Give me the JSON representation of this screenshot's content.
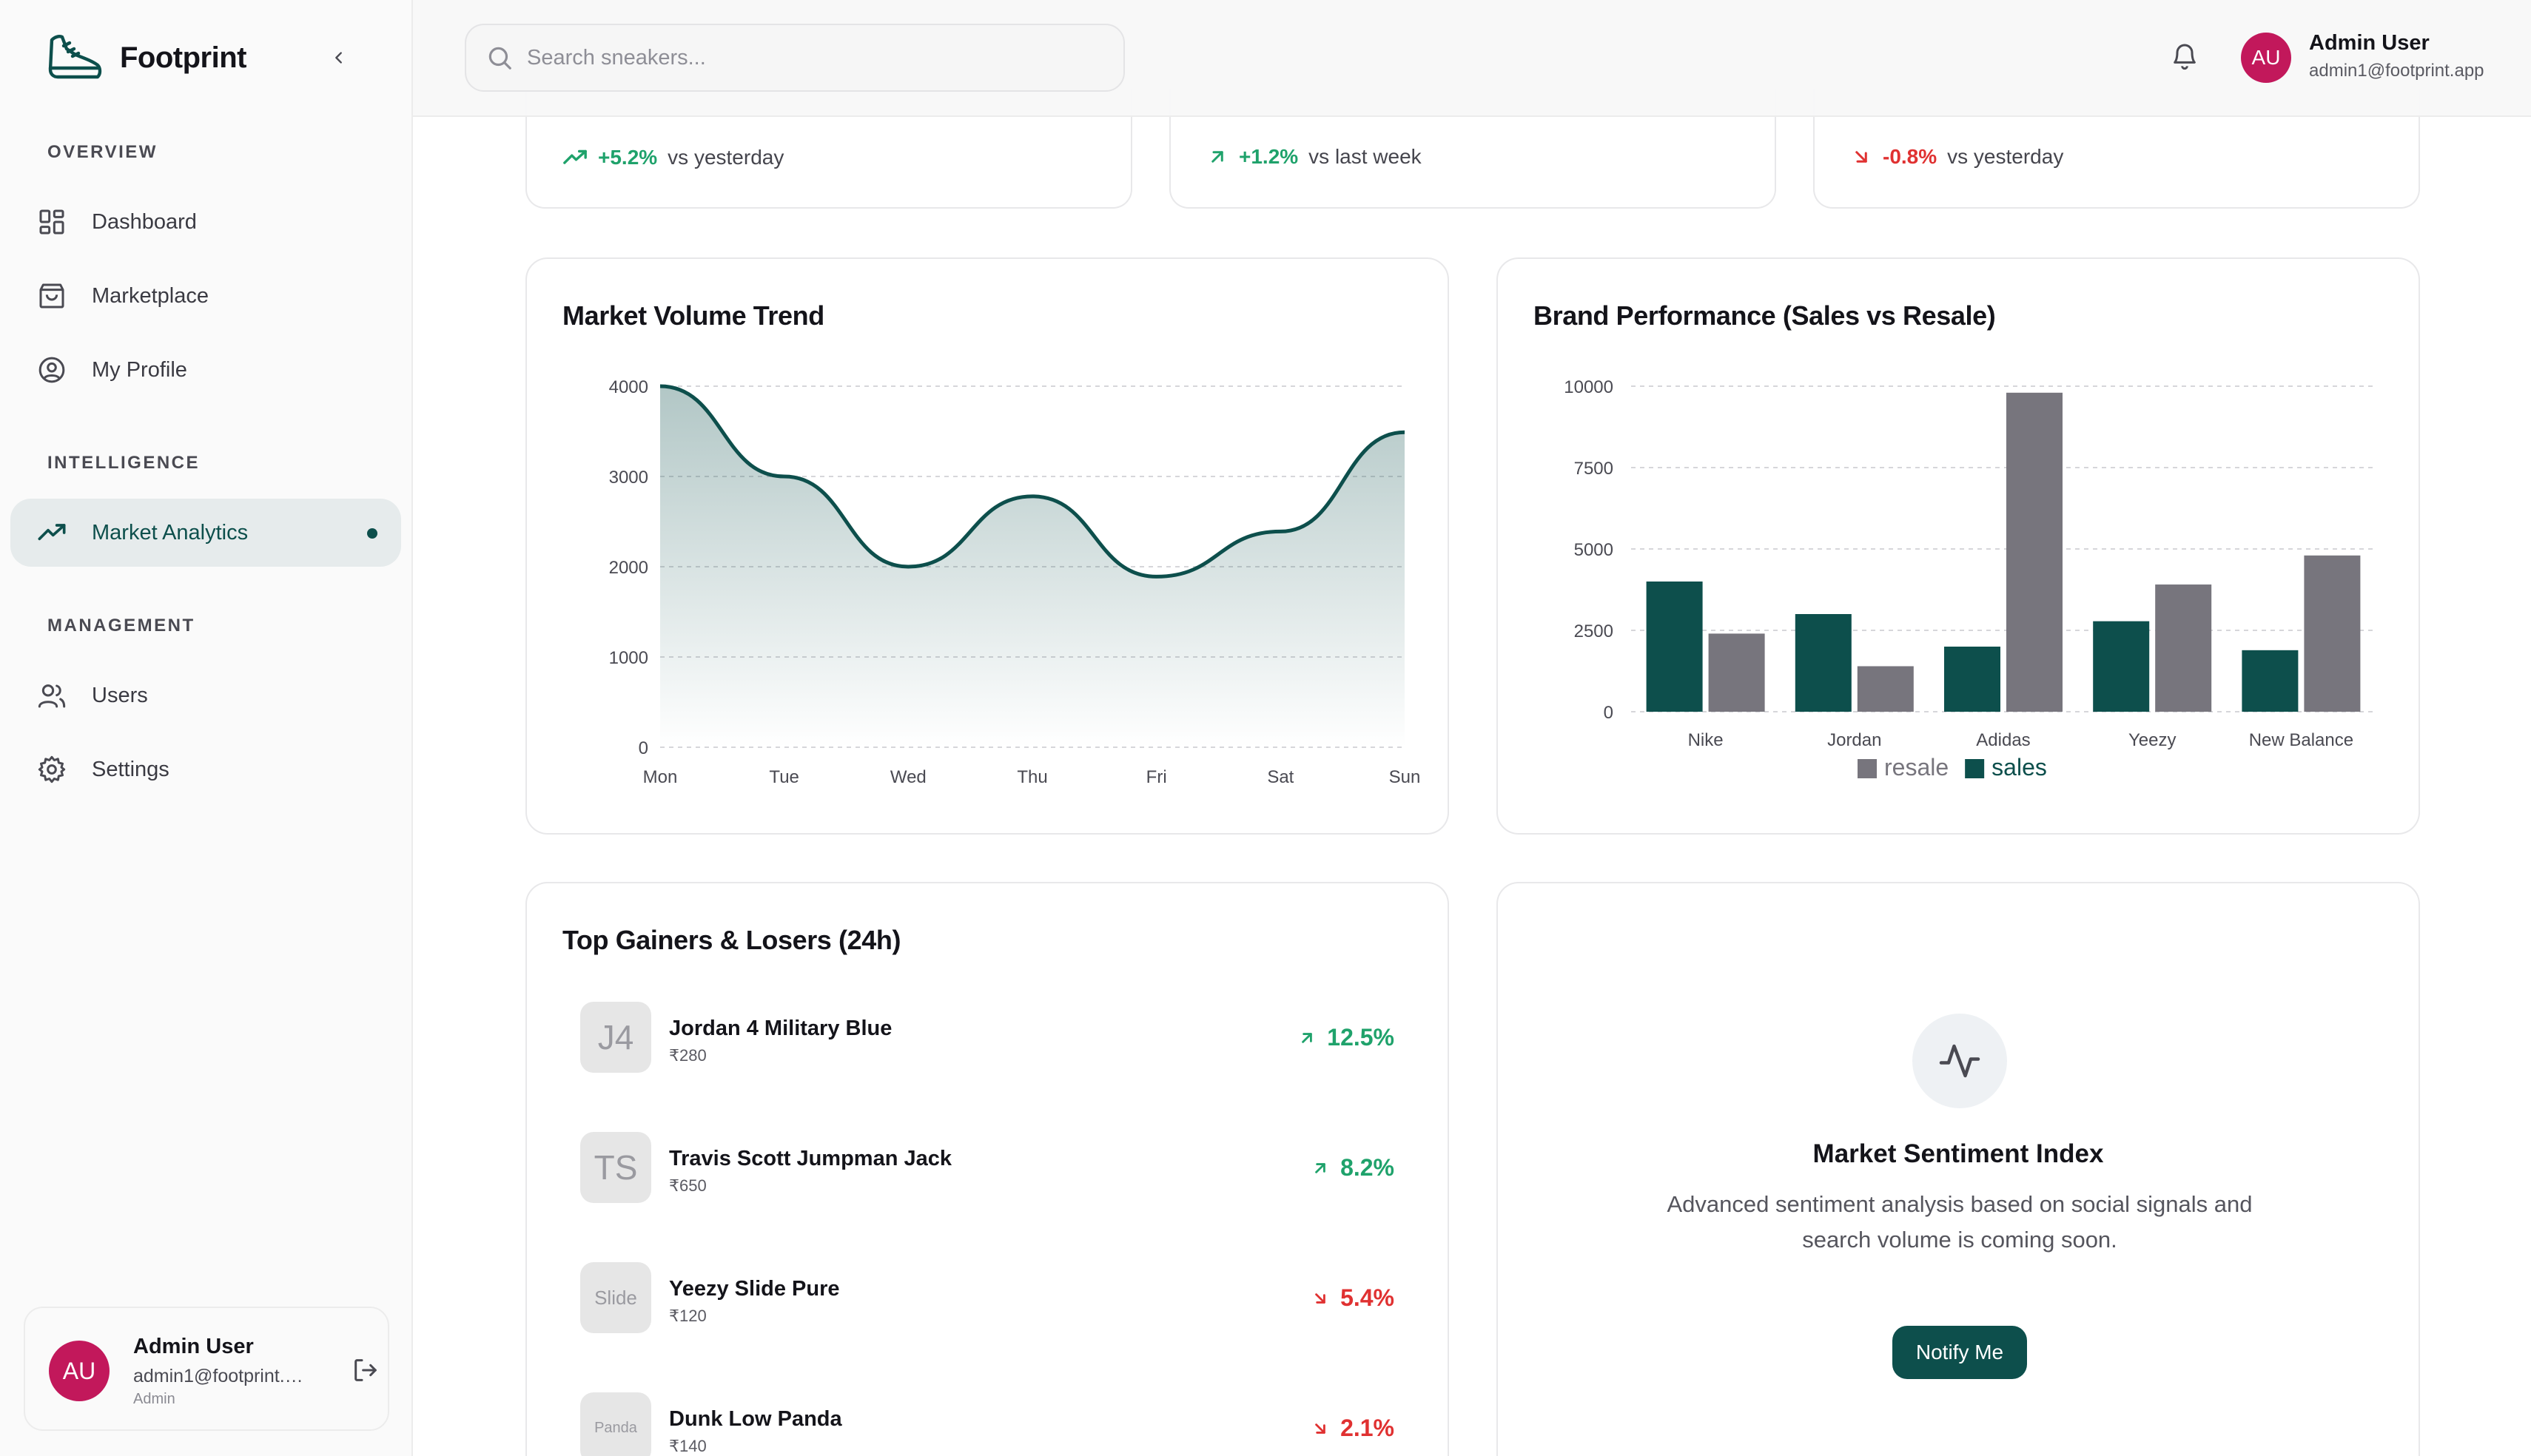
{
  "app": {
    "name": "Footprint"
  },
  "sidebar": {
    "sections": [
      {
        "label": "OVERVIEW"
      },
      {
        "label": "INTELLIGENCE"
      },
      {
        "label": "MANAGEMENT"
      }
    ],
    "items": [
      {
        "label": "Dashboard",
        "icon": "dashboard-icon"
      },
      {
        "label": "Marketplace",
        "icon": "shopping-bag-icon"
      },
      {
        "label": "My Profile",
        "icon": "user-circle-icon"
      },
      {
        "label": "Market Analytics",
        "icon": "trending-up-icon",
        "active": true
      },
      {
        "label": "Users",
        "icon": "users-icon"
      },
      {
        "label": "Settings",
        "icon": "gear-icon"
      }
    ],
    "user": {
      "initials": "AU",
      "name": "Admin User",
      "email": "admin1@footprint.…",
      "role": "Admin"
    }
  },
  "header": {
    "search_placeholder": "Search sneakers...",
    "user": {
      "initials": "AU",
      "name": "Admin User",
      "email": "admin1@footprint.app"
    }
  },
  "stats": [
    {
      "change": "+5.2%",
      "direction": "up",
      "context": "vs yesterday"
    },
    {
      "change": "+1.2%",
      "direction": "up",
      "context": "vs last week"
    },
    {
      "change": "-0.8%",
      "direction": "down",
      "context": "vs yesterday"
    }
  ],
  "volume_card": {
    "title": "Market Volume Trend"
  },
  "brand_card": {
    "title": "Brand Performance (Sales vs Resale)"
  },
  "movers_card": {
    "title": "Top Gainers & Losers (24h)",
    "items": [
      {
        "thumb": "J4",
        "name": "Jordan 4 Military Blue",
        "price": "₹280",
        "change": "12.5%",
        "direction": "up"
      },
      {
        "thumb": "TS",
        "name": "Travis Scott Jumpman Jack",
        "price": "₹650",
        "change": "8.2%",
        "direction": "up"
      },
      {
        "thumb": "Slide",
        "name": "Yeezy Slide Pure",
        "price": "₹120",
        "change": "5.4%",
        "direction": "down"
      },
      {
        "thumb": "Panda",
        "name": "Dunk Low Panda",
        "price": "₹140",
        "change": "2.1%",
        "direction": "down"
      }
    ]
  },
  "sentiment_card": {
    "title": "Market Sentiment Index",
    "description": "Advanced sentiment analysis based on social signals and search volume is coming soon.",
    "button": "Notify Me"
  },
  "colors": {
    "accent": "#0d4f4c",
    "resale": "#77757d",
    "up": "#1fa26b",
    "down": "#e03131",
    "avatar": "#c2185b"
  },
  "chart_data": [
    {
      "type": "area",
      "title": "Market Volume Trend",
      "categories": [
        "Mon",
        "Tue",
        "Wed",
        "Thu",
        "Fri",
        "Sat",
        "Sun"
      ],
      "values": [
        4000,
        3000,
        2000,
        2780,
        1890,
        2390,
        3490
      ],
      "ylim": [
        0,
        4000
      ],
      "yticks": [
        0,
        1000,
        2000,
        3000,
        4000
      ],
      "grid": true
    },
    {
      "type": "bar",
      "title": "Brand Performance (Sales vs Resale)",
      "categories": [
        "Nike",
        "Jordan",
        "Adidas",
        "Yeezy",
        "New Balance"
      ],
      "series": [
        {
          "name": "sales",
          "values": [
            4000,
            3000,
            2000,
            2780,
            1890
          ],
          "color": "#0d4f4c"
        },
        {
          "name": "resale",
          "values": [
            2400,
            1398,
            9800,
            3908,
            4800
          ],
          "color": "#77757d"
        }
      ],
      "legend_order": [
        "resale",
        "sales"
      ],
      "ylim": [
        0,
        10000
      ],
      "yticks": [
        0,
        2500,
        5000,
        7500,
        10000
      ],
      "legend": "bottom",
      "grid": true
    }
  ]
}
